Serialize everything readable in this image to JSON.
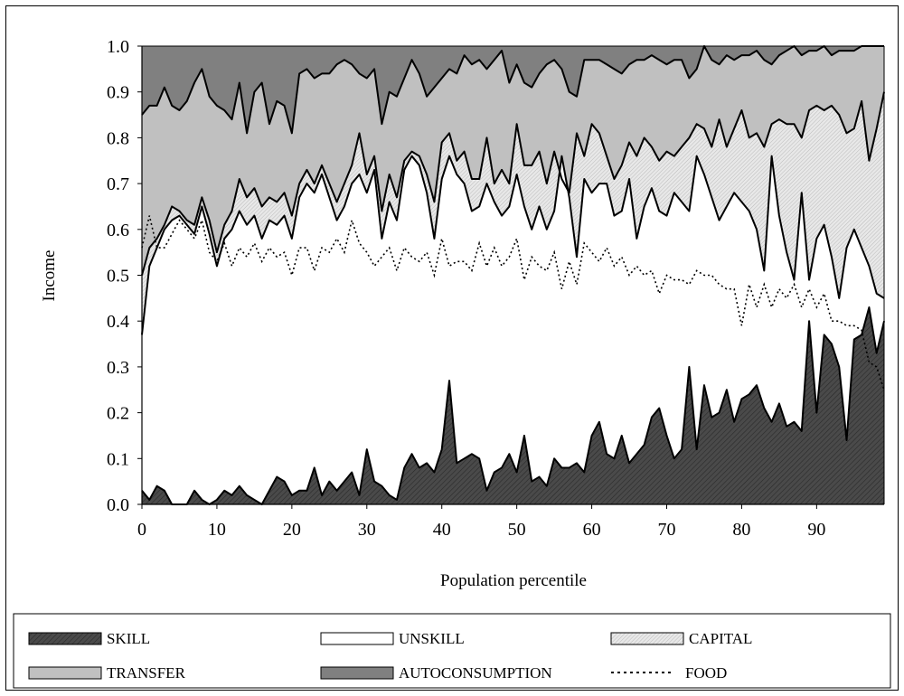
{
  "colors": {
    "skill": "#4a4a4a",
    "unskill": "#ffffff",
    "capital": "#e8e8e8",
    "transfer": "#c0c0c0",
    "autoconsumption": "#808080",
    "line": "#000000"
  },
  "chart_data": {
    "type": "area",
    "stacked": true,
    "xlabel": "Population percentile",
    "ylabel": "Income",
    "xlim": [
      0,
      99
    ],
    "ylim": [
      0,
      1
    ],
    "x_ticks": [
      0,
      10,
      20,
      30,
      40,
      50,
      60,
      70,
      80,
      90
    ],
    "x_tick_labels": [
      "0",
      "10",
      "20",
      "30",
      "40",
      "50",
      "60",
      "70",
      "80",
      "90"
    ],
    "y_ticks": [
      0,
      0.1,
      0.2,
      0.3,
      0.4,
      0.5,
      0.6,
      0.7,
      0.8,
      0.9,
      1.0
    ],
    "y_tick_labels": [
      "0.0",
      "0.1",
      "0.2",
      "0.3",
      "0.4",
      "0.5",
      "0.6",
      "0.7",
      "0.8",
      "0.9",
      "1.0"
    ],
    "grid": false,
    "legend_position": "bottom",
    "legend": [
      {
        "key": "skill",
        "label": "SKILL"
      },
      {
        "key": "unskill",
        "label": "UNSKILL"
      },
      {
        "key": "capital",
        "label": "CAPITAL"
      },
      {
        "key": "transfer",
        "label": "TRANSFER"
      },
      {
        "key": "autoconsumption",
        "label": "AUTOCONSUMPTION"
      },
      {
        "key": "food",
        "label": "FOOD"
      }
    ],
    "x": [
      0,
      1,
      2,
      3,
      4,
      5,
      6,
      7,
      8,
      9,
      10,
      11,
      12,
      13,
      14,
      15,
      16,
      17,
      18,
      19,
      20,
      21,
      22,
      23,
      24,
      25,
      26,
      27,
      28,
      29,
      30,
      31,
      32,
      33,
      34,
      35,
      36,
      37,
      38,
      39,
      40,
      41,
      42,
      43,
      44,
      45,
      46,
      47,
      48,
      49,
      50,
      51,
      52,
      53,
      54,
      55,
      56,
      57,
      58,
      59,
      60,
      61,
      62,
      63,
      64,
      65,
      66,
      67,
      68,
      69,
      70,
      71,
      72,
      73,
      74,
      75,
      76,
      77,
      78,
      79,
      80,
      81,
      82,
      83,
      84,
      85,
      86,
      87,
      88,
      89,
      90,
      91,
      92,
      93,
      94,
      95,
      96,
      97,
      98,
      99
    ],
    "series": [
      {
        "key": "skill",
        "name": "SKILL",
        "kind": "area",
        "values": [
          0.03,
          0.01,
          0.04,
          0.03,
          0.0,
          0.0,
          0.0,
          0.03,
          0.01,
          0.0,
          0.01,
          0.03,
          0.02,
          0.04,
          0.02,
          0.01,
          0.0,
          0.03,
          0.06,
          0.05,
          0.02,
          0.03,
          0.03,
          0.08,
          0.02,
          0.05,
          0.03,
          0.05,
          0.07,
          0.02,
          0.12,
          0.05,
          0.04,
          0.02,
          0.01,
          0.08,
          0.11,
          0.08,
          0.09,
          0.07,
          0.12,
          0.27,
          0.09,
          0.1,
          0.11,
          0.1,
          0.03,
          0.07,
          0.08,
          0.11,
          0.07,
          0.15,
          0.05,
          0.06,
          0.04,
          0.1,
          0.08,
          0.08,
          0.09,
          0.07,
          0.15,
          0.18,
          0.11,
          0.1,
          0.15,
          0.09,
          0.11,
          0.13,
          0.19,
          0.21,
          0.15,
          0.1,
          0.12,
          0.3,
          0.12,
          0.26,
          0.19,
          0.2,
          0.25,
          0.18,
          0.23,
          0.24,
          0.26,
          0.21,
          0.18,
          0.22,
          0.17,
          0.18,
          0.16,
          0.4,
          0.2,
          0.37,
          0.35,
          0.3,
          0.14,
          0.36,
          0.37,
          0.43,
          0.33,
          0.4
        ]
      },
      {
        "key": "unskill",
        "name": "UNSKILL",
        "kind": "boundary",
        "values": [
          0.37,
          0.52,
          0.56,
          0.6,
          0.62,
          0.63,
          0.61,
          0.59,
          0.65,
          0.59,
          0.52,
          0.58,
          0.6,
          0.64,
          0.61,
          0.63,
          0.58,
          0.62,
          0.61,
          0.63,
          0.58,
          0.67,
          0.7,
          0.68,
          0.72,
          0.67,
          0.62,
          0.65,
          0.7,
          0.72,
          0.68,
          0.73,
          0.58,
          0.66,
          0.62,
          0.73,
          0.76,
          0.74,
          0.68,
          0.58,
          0.71,
          0.76,
          0.72,
          0.7,
          0.64,
          0.65,
          0.7,
          0.66,
          0.63,
          0.65,
          0.72,
          0.65,
          0.6,
          0.65,
          0.6,
          0.64,
          0.76,
          0.67,
          0.54,
          0.71,
          0.68,
          0.7,
          0.7,
          0.63,
          0.64,
          0.71,
          0.58,
          0.65,
          0.69,
          0.64,
          0.63,
          0.68,
          0.66,
          0.64,
          0.76,
          0.72,
          0.67,
          0.62,
          0.65,
          0.68,
          0.66,
          0.64,
          0.6,
          0.51,
          0.76,
          0.63,
          0.55,
          0.49,
          0.68,
          0.49,
          0.58,
          0.61,
          0.54,
          0.45,
          0.56,
          0.6,
          0.56,
          0.52,
          0.46,
          0.45
        ]
      },
      {
        "key": "capital",
        "name": "CAPITAL",
        "kind": "boundary",
        "values": [
          0.5,
          0.56,
          0.58,
          0.61,
          0.65,
          0.64,
          0.62,
          0.61,
          0.67,
          0.62,
          0.55,
          0.61,
          0.64,
          0.71,
          0.67,
          0.69,
          0.65,
          0.67,
          0.66,
          0.68,
          0.63,
          0.7,
          0.73,
          0.7,
          0.74,
          0.7,
          0.66,
          0.7,
          0.74,
          0.81,
          0.72,
          0.76,
          0.64,
          0.72,
          0.67,
          0.75,
          0.77,
          0.76,
          0.72,
          0.66,
          0.79,
          0.81,
          0.75,
          0.77,
          0.71,
          0.71,
          0.8,
          0.7,
          0.73,
          0.7,
          0.83,
          0.74,
          0.74,
          0.77,
          0.7,
          0.77,
          0.71,
          0.68,
          0.81,
          0.76,
          0.83,
          0.81,
          0.76,
          0.71,
          0.74,
          0.79,
          0.76,
          0.8,
          0.78,
          0.75,
          0.77,
          0.76,
          0.78,
          0.8,
          0.83,
          0.82,
          0.78,
          0.84,
          0.78,
          0.82,
          0.86,
          0.8,
          0.81,
          0.78,
          0.83,
          0.84,
          0.83,
          0.83,
          0.8,
          0.86,
          0.87,
          0.86,
          0.87,
          0.85,
          0.81,
          0.82,
          0.88,
          0.75,
          0.82,
          0.9
        ]
      },
      {
        "key": "transfer",
        "name": "TRANSFER",
        "kind": "boundary",
        "values": [
          0.85,
          0.87,
          0.87,
          0.91,
          0.87,
          0.86,
          0.88,
          0.92,
          0.95,
          0.89,
          0.87,
          0.86,
          0.84,
          0.92,
          0.81,
          0.9,
          0.92,
          0.83,
          0.88,
          0.87,
          0.81,
          0.94,
          0.95,
          0.93,
          0.94,
          0.94,
          0.96,
          0.97,
          0.96,
          0.94,
          0.93,
          0.95,
          0.83,
          0.9,
          0.89,
          0.93,
          0.97,
          0.94,
          0.89,
          0.91,
          0.93,
          0.95,
          0.94,
          0.98,
          0.96,
          0.97,
          0.95,
          0.97,
          0.99,
          0.92,
          0.96,
          0.92,
          0.91,
          0.94,
          0.96,
          0.97,
          0.95,
          0.9,
          0.89,
          0.97,
          0.97,
          0.97,
          0.96,
          0.95,
          0.94,
          0.96,
          0.97,
          0.97,
          0.98,
          0.97,
          0.96,
          0.97,
          0.97,
          0.93,
          0.95,
          1.0,
          0.97,
          0.96,
          0.98,
          0.97,
          0.98,
          0.98,
          0.99,
          0.97,
          0.96,
          0.98,
          0.99,
          1.0,
          0.98,
          0.99,
          0.99,
          1.0,
          0.98,
          0.99,
          0.99,
          0.99,
          1.0,
          1.0,
          1.0,
          1.0
        ]
      },
      {
        "key": "food",
        "name": "FOOD",
        "kind": "dotted",
        "values": [
          0.56,
          0.63,
          0.56,
          0.56,
          0.59,
          0.62,
          0.6,
          0.58,
          0.62,
          0.55,
          0.53,
          0.57,
          0.52,
          0.56,
          0.54,
          0.57,
          0.53,
          0.56,
          0.54,
          0.55,
          0.5,
          0.56,
          0.56,
          0.51,
          0.56,
          0.55,
          0.58,
          0.55,
          0.62,
          0.57,
          0.55,
          0.52,
          0.54,
          0.56,
          0.51,
          0.56,
          0.54,
          0.53,
          0.55,
          0.5,
          0.58,
          0.52,
          0.53,
          0.53,
          0.51,
          0.57,
          0.52,
          0.56,
          0.52,
          0.54,
          0.58,
          0.49,
          0.54,
          0.52,
          0.51,
          0.55,
          0.47,
          0.53,
          0.48,
          0.57,
          0.55,
          0.53,
          0.56,
          0.52,
          0.54,
          0.5,
          0.52,
          0.5,
          0.51,
          0.46,
          0.5,
          0.49,
          0.49,
          0.48,
          0.51,
          0.5,
          0.5,
          0.48,
          0.47,
          0.47,
          0.39,
          0.48,
          0.43,
          0.48,
          0.43,
          0.47,
          0.45,
          0.48,
          0.43,
          0.47,
          0.43,
          0.46,
          0.4,
          0.4,
          0.39,
          0.39,
          0.38,
          0.31,
          0.3,
          0.25
        ]
      }
    ]
  }
}
